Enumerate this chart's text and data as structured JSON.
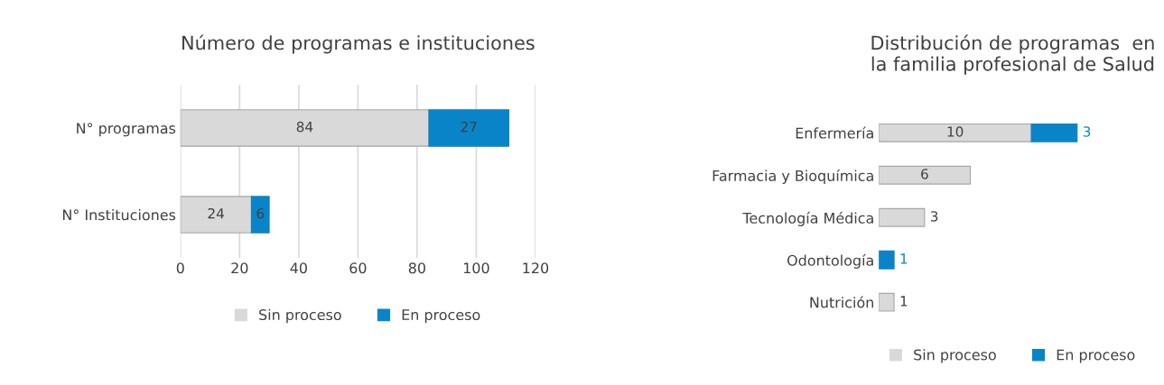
{
  "chart_data": [
    {
      "type": "bar",
      "orientation": "horizontal",
      "stacked": true,
      "title": "Número de programas e instituciones",
      "categories": [
        "N° programas",
        "N° Instituciones"
      ],
      "series": [
        {
          "name": "Sin proceso",
          "color": "#d9d9d9",
          "values": [
            84,
            24
          ]
        },
        {
          "name": "En proceso",
          "color": "#0a84c8",
          "values": [
            27,
            6
          ]
        }
      ],
      "xlim": [
        0,
        120
      ],
      "xticks": [
        0,
        20,
        40,
        60,
        80,
        100,
        120
      ],
      "grid": "x",
      "legend": "bottom",
      "data_labels": true
    },
    {
      "type": "bar",
      "orientation": "horizontal",
      "stacked": true,
      "title": "Distribución de programas  en la familia profesional de Salud",
      "categories": [
        "Enfermería",
        "Farmacia y Bioquímica",
        "Tecnología Médica",
        "Odontología",
        "Nutrición"
      ],
      "series": [
        {
          "name": "Sin proceso",
          "color": "#d9d9d9",
          "values": [
            10,
            6,
            3,
            null,
            1
          ]
        },
        {
          "name": "En proceso",
          "color": "#0a84c8",
          "values": [
            3,
            null,
            null,
            1,
            null
          ]
        }
      ],
      "tick_labels": "y",
      "legend": "bottom",
      "data_labels": true
    }
  ]
}
